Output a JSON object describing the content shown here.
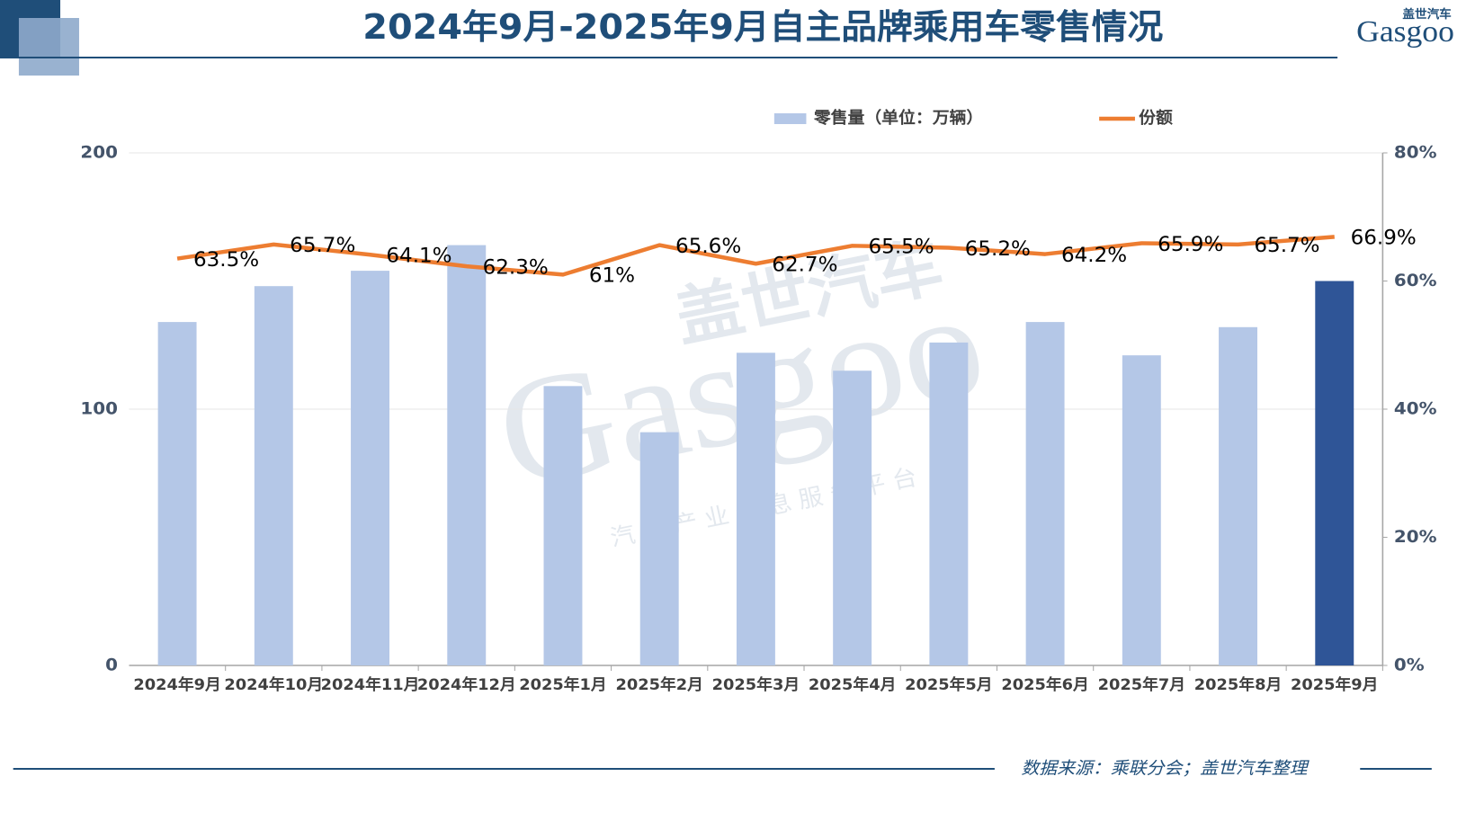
{
  "chart_data": {
    "type": "bar",
    "title": "2024年9月-2025年9月自主品牌乘用车零售情况",
    "categories": [
      "2024年9月",
      "2024年10月",
      "2024年11月",
      "2024年12月",
      "2025年1月",
      "2025年2月",
      "2025年3月",
      "2025年4月",
      "2025年5月",
      "2025年6月",
      "2025年7月",
      "2025年8月",
      "2025年9月"
    ],
    "series": [
      {
        "name": "零售量（单位：万辆）",
        "type": "bar",
        "color": "#b4c7e7",
        "colors": [
          "#b4c7e7",
          "#b4c7e7",
          "#b4c7e7",
          "#b4c7e7",
          "#b4c7e7",
          "#b4c7e7",
          "#b4c7e7",
          "#b4c7e7",
          "#b4c7e7",
          "#b4c7e7",
          "#b4c7e7",
          "#b4c7e7",
          "#2f5597"
        ],
        "values": [
          134,
          148,
          154,
          164,
          109,
          91,
          122,
          115,
          126,
          134,
          121,
          132,
          150
        ]
      },
      {
        "name": "份额",
        "type": "line",
        "axis": "y2",
        "color": "#ed7d31",
        "values": [
          63.5,
          65.7,
          64.1,
          62.3,
          61,
          65.6,
          62.7,
          65.5,
          65.2,
          64.2,
          65.9,
          65.7,
          66.9
        ],
        "value_labels": [
          "63.5%",
          "65.7%",
          "64.1%",
          "62.3%",
          "61%",
          "65.6%",
          "62.7%",
          "65.5%",
          "65.2%",
          "64.2%",
          "65.9%",
          "65.7%",
          "66.9%"
        ]
      }
    ],
    "ylim": [
      0,
      200
    ],
    "yticks": [
      0,
      100,
      200
    ],
    "y2lim": [
      0,
      80
    ],
    "y2ticks": [
      {
        "value": 0,
        "label": "0%"
      },
      {
        "value": 20,
        "label": "20%"
      },
      {
        "value": 40,
        "label": "40%"
      },
      {
        "value": 60,
        "label": "60%"
      },
      {
        "value": 80,
        "label": "80%"
      }
    ],
    "grid": true,
    "legend": "top"
  },
  "logo": {
    "cn": "盖世汽车",
    "en": "Gasgoo"
  },
  "watermark": {
    "cn": "盖世汽车",
    "en": "Gasgoo",
    "tagline": "汽车产业信息服务平台"
  },
  "footer": {
    "source": "数据来源：乘联分会；盖世汽车整理"
  }
}
